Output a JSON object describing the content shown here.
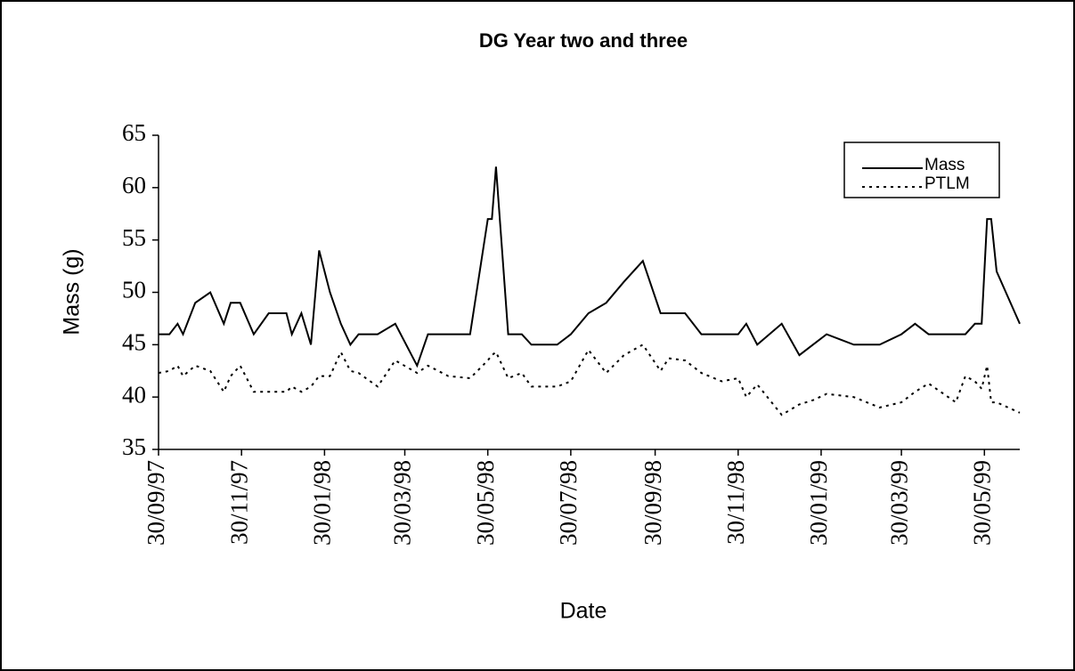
{
  "chart_data": {
    "type": "line",
    "title": "DG Year two and three",
    "x_label": "Date",
    "y_label": "Mass (g)",
    "x": [
      "30/09/97",
      "08/10/97",
      "14/10/97",
      "18/10/97",
      "27/10/97",
      "07/11/97",
      "17/11/97",
      "22/11/97",
      "29/11/97",
      "09/12/97",
      "20/12/97",
      "02/01/98",
      "06/01/98",
      "13/01/98",
      "20/01/98",
      "26/01/98",
      "03/02/98",
      "11/02/98",
      "18/02/98",
      "24/02/98",
      "10/03/98",
      "23/03/98",
      "08/04/98",
      "16/04/98",
      "01/05/98",
      "17/05/98",
      "30/05/98",
      "02/06/98",
      "05/06/98",
      "14/06/98",
      "24/06/98",
      "01/07/98",
      "20/07/98",
      "30/07/98",
      "12/08/98",
      "25/08/98",
      "07/09/98",
      "21/09/98",
      "04/10/98",
      "10/10/98",
      "22/10/98",
      "03/11/98",
      "18/11/98",
      "30/11/98",
      "06/12/98",
      "14/12/98",
      "01/01/99",
      "14/01/99",
      "24/01/99",
      "03/02/99",
      "23/02/99",
      "14/03/99",
      "30/03/99",
      "09/04/99",
      "19/04/99",
      "09/05/99",
      "16/05/99",
      "23/05/99",
      "28/05/99",
      "01/06/99",
      "04/06/99",
      "08/06/99",
      "25/06/99"
    ],
    "series": [
      {
        "name": "Mass",
        "color": "#000000",
        "style": "solid",
        "values": [
          46,
          46,
          47,
          46,
          49,
          50,
          47,
          49,
          49,
          46,
          48,
          48,
          46,
          48,
          45,
          54,
          50,
          47,
          45,
          46,
          46,
          47,
          43,
          46,
          46,
          46,
          57,
          57,
          62,
          46,
          46,
          45,
          45,
          46,
          48,
          49,
          51,
          53,
          48,
          48,
          48,
          46,
          46,
          46,
          47,
          45,
          47,
          44,
          45,
          46,
          45,
          45,
          46,
          47,
          46,
          46,
          46,
          47,
          47,
          57,
          57,
          52,
          47
        ]
      },
      {
        "name": "PTLM",
        "color": "#000000",
        "style": "dotted",
        "values": [
          42.3,
          42.5,
          43,
          42,
          43,
          42.5,
          40.5,
          42,
          43,
          40.5,
          40.5,
          40.5,
          41,
          40.5,
          41,
          42,
          42,
          44.3,
          42.5,
          42.3,
          41,
          43.5,
          42.3,
          43,
          42,
          41.8,
          43.5,
          44,
          44.3,
          41.8,
          42.3,
          41,
          41,
          41.5,
          44.5,
          42.3,
          44,
          45,
          42.5,
          43.7,
          43.5,
          42.3,
          41.5,
          41.8,
          40,
          41.2,
          38.3,
          39.3,
          39.7,
          40.3,
          40,
          39,
          39.5,
          40.5,
          41.3,
          39.5,
          42,
          41.5,
          40.8,
          43,
          39.5,
          39.5,
          38.5
        ]
      }
    ],
    "xlim": [
      "30/09/97",
      "25/06/99"
    ],
    "xticks": [
      "30/09/97",
      "30/11/97",
      "30/01/98",
      "30/03/98",
      "30/05/98",
      "30/07/98",
      "30/09/98",
      "30/11/98",
      "30/01/99",
      "30/03/99",
      "30/05/99"
    ],
    "ylim": [
      35,
      65
    ],
    "yticks": [
      35,
      40,
      45,
      50,
      55,
      60,
      65
    ],
    "grid": false,
    "legend": "top-right"
  }
}
